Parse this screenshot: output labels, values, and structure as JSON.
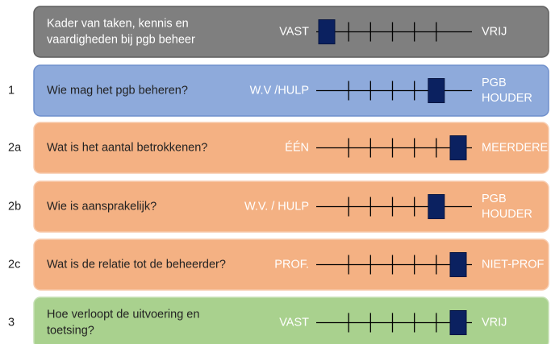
{
  "scale": {
    "min": 0,
    "max": 6,
    "ticks": [
      1,
      2,
      3,
      4,
      5
    ]
  },
  "rows": [
    {
      "number": null,
      "question": [
        "Kader van taken, kennis en",
        "vaardigheden bij pgb beheer"
      ],
      "left_label": [
        "VAST"
      ],
      "right_label": [
        "VRIJ"
      ],
      "position": 0,
      "style": "gray"
    },
    {
      "number": "1",
      "question": [
        "Wie mag het pgb beheren?"
      ],
      "left_label": [
        "W.V /HULP"
      ],
      "right_label": [
        "PGB",
        "HOUDER"
      ],
      "position": 5,
      "style": "blue"
    },
    {
      "number": "2a",
      "question": [
        "Wat is het aantal betrokkenen?"
      ],
      "left_label": [
        "ÉÉN"
      ],
      "right_label": [
        "MEERDERE"
      ],
      "position": 6,
      "style": "orange"
    },
    {
      "number": "2b",
      "question": [
        "Wie is aansprakelijk?"
      ],
      "left_label": [
        "W.V. / HULP"
      ],
      "right_label": [
        "PGB",
        "HOUDER"
      ],
      "position": 5,
      "style": "orange"
    },
    {
      "number": "2c",
      "question": [
        "Wat is de relatie tot de beheerder?"
      ],
      "left_label": [
        "PROF."
      ],
      "right_label": [
        "NIET-PROF"
      ],
      "position": 6,
      "style": "orange"
    },
    {
      "number": "3",
      "question": [
        "Hoe verloopt de uitvoering en",
        "toetsing?"
      ],
      "left_label": [
        "VAST"
      ],
      "right_label": [
        "VRIJ"
      ],
      "position": 6,
      "style": "green"
    }
  ]
}
